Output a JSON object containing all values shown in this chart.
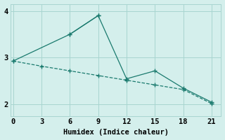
{
  "xlabel": "Humidex (Indice chaleur)",
  "bg_color": "#d4efec",
  "line_color": "#1a7a6e",
  "grid_color": "#a8d5d0",
  "line1_x": [
    0,
    6,
    9
  ],
  "line1_y": [
    2.93,
    3.5,
    3.9
  ],
  "line2_x": [
    0,
    3,
    6,
    9,
    12,
    15,
    18,
    21
  ],
  "line2_y": [
    2.93,
    2.82,
    2.72,
    2.62,
    2.52,
    2.42,
    2.32,
    2.02
  ],
  "line3_x": [
    6,
    9,
    12,
    15,
    18,
    21
  ],
  "line3_y": [
    3.5,
    3.9,
    2.55,
    2.72,
    2.35,
    2.05
  ],
  "xlim": [
    -0.3,
    22.0
  ],
  "ylim": [
    1.75,
    4.15
  ],
  "xticks": [
    0,
    3,
    6,
    9,
    12,
    15,
    18,
    21
  ],
  "yticks": [
    2,
    3,
    4
  ],
  "fontsize": 7.5
}
